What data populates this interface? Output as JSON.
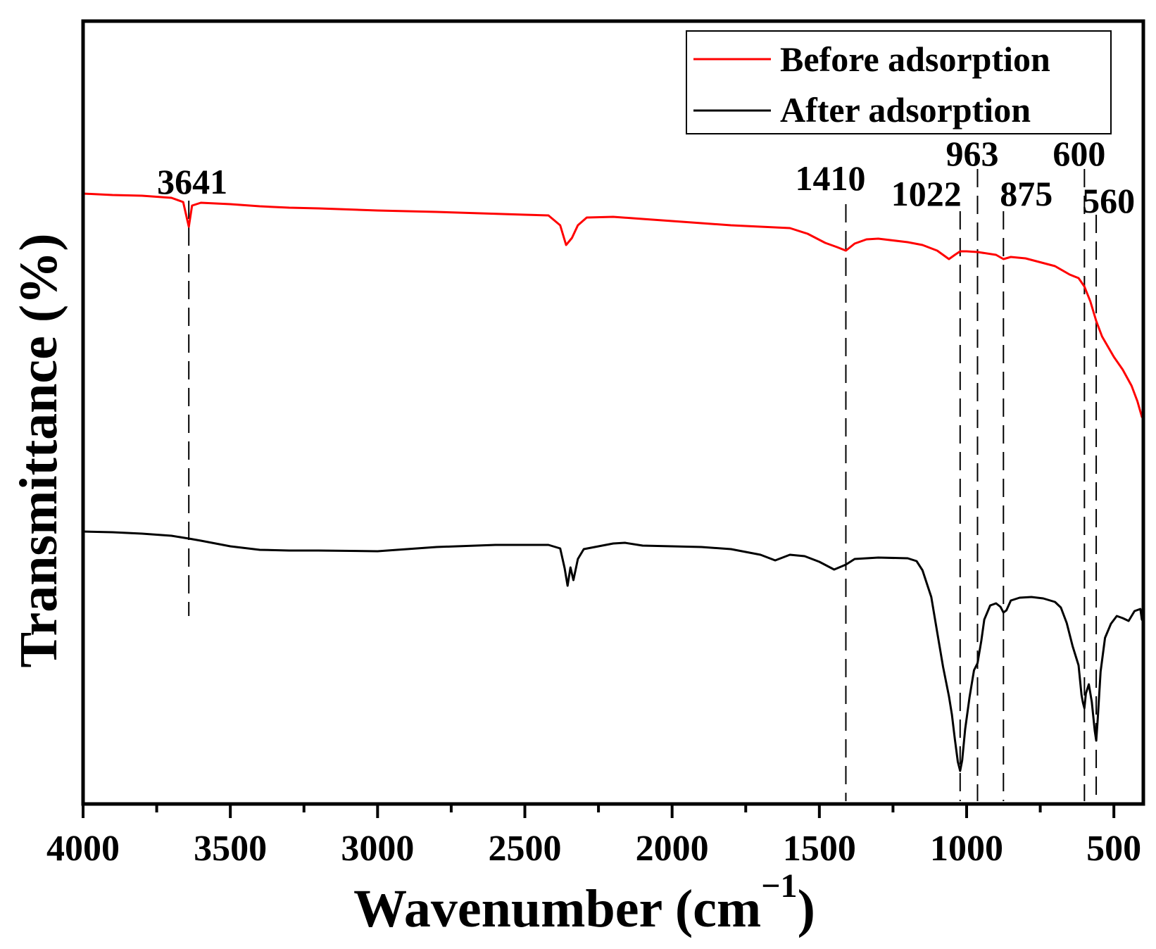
{
  "chart_data": {
    "type": "line",
    "title": "",
    "xlabel": "Wavenumber (cm",
    "xlabel_sup": "−1",
    "xlabel_close": ")",
    "ylabel": "Transmittance (%)",
    "xlim": [
      4000,
      400
    ],
    "ylim": [
      0,
      100
    ],
    "x_ticks": [
      4000,
      3500,
      3000,
      2500,
      2000,
      1500,
      1000,
      500
    ],
    "x_ticks_minor": [
      3750,
      3250,
      2750,
      2250,
      1750,
      1250,
      750
    ],
    "legend_position": "top-right",
    "series": [
      {
        "name": "Before adsorption",
        "color": "#ff0000",
        "points": [
          [
            4000,
            82.5
          ],
          [
            3900,
            82.3
          ],
          [
            3800,
            82.2
          ],
          [
            3700,
            81.9
          ],
          [
            3660,
            81.3
          ],
          [
            3641,
            77.8
          ],
          [
            3630,
            80.8
          ],
          [
            3600,
            81.2
          ],
          [
            3500,
            81.0
          ],
          [
            3400,
            80.7
          ],
          [
            3300,
            80.5
          ],
          [
            3200,
            80.4
          ],
          [
            3000,
            80.1
          ],
          [
            2800,
            79.9
          ],
          [
            2500,
            79.5
          ],
          [
            2420,
            79.4
          ],
          [
            2380,
            78.0
          ],
          [
            2360,
            75.2
          ],
          [
            2340,
            76.2
          ],
          [
            2320,
            78.0
          ],
          [
            2290,
            79.1
          ],
          [
            2200,
            79.2
          ],
          [
            2100,
            78.9
          ],
          [
            2000,
            78.6
          ],
          [
            1900,
            78.3
          ],
          [
            1800,
            78.0
          ],
          [
            1700,
            77.8
          ],
          [
            1600,
            77.6
          ],
          [
            1540,
            76.8
          ],
          [
            1480,
            75.5
          ],
          [
            1440,
            74.9
          ],
          [
            1410,
            74.4
          ],
          [
            1380,
            75.4
          ],
          [
            1340,
            76.0
          ],
          [
            1300,
            76.1
          ],
          [
            1200,
            75.6
          ],
          [
            1150,
            75.2
          ],
          [
            1100,
            74.4
          ],
          [
            1060,
            73.2
          ],
          [
            1040,
            73.8
          ],
          [
            1022,
            74.3
          ],
          [
            1000,
            74.3
          ],
          [
            963,
            74.2
          ],
          [
            900,
            73.8
          ],
          [
            875,
            73.2
          ],
          [
            850,
            73.5
          ],
          [
            800,
            73.3
          ],
          [
            700,
            72.2
          ],
          [
            650,
            71.0
          ],
          [
            620,
            70.5
          ],
          [
            600,
            69.3
          ],
          [
            580,
            67.2
          ],
          [
            560,
            64.4
          ],
          [
            540,
            62.2
          ],
          [
            500,
            59.3
          ],
          [
            470,
            57.5
          ],
          [
            440,
            55.2
          ],
          [
            420,
            53.0
          ],
          [
            405,
            50.8
          ],
          [
            400,
            50.5
          ]
        ]
      },
      {
        "name": "After adsorption",
        "color": "#000000",
        "points": [
          [
            4000,
            34.5
          ],
          [
            3900,
            34.4
          ],
          [
            3800,
            34.2
          ],
          [
            3700,
            33.9
          ],
          [
            3641,
            33.5
          ],
          [
            3600,
            33.2
          ],
          [
            3500,
            32.4
          ],
          [
            3400,
            31.9
          ],
          [
            3300,
            31.8
          ],
          [
            3200,
            31.8
          ],
          [
            3000,
            31.7
          ],
          [
            2800,
            32.3
          ],
          [
            2600,
            32.6
          ],
          [
            2420,
            32.6
          ],
          [
            2380,
            32.1
          ],
          [
            2365,
            29.3
          ],
          [
            2355,
            26.8
          ],
          [
            2345,
            29.4
          ],
          [
            2335,
            27.6
          ],
          [
            2320,
            30.6
          ],
          [
            2300,
            32.0
          ],
          [
            2200,
            32.8
          ],
          [
            2160,
            32.9
          ],
          [
            2100,
            32.5
          ],
          [
            2000,
            32.4
          ],
          [
            1900,
            32.3
          ],
          [
            1800,
            32.0
          ],
          [
            1700,
            31.2
          ],
          [
            1650,
            30.4
          ],
          [
            1600,
            31.2
          ],
          [
            1550,
            31.0
          ],
          [
            1500,
            30.2
          ],
          [
            1450,
            29.1
          ],
          [
            1410,
            29.8
          ],
          [
            1380,
            30.6
          ],
          [
            1300,
            30.8
          ],
          [
            1200,
            30.7
          ],
          [
            1170,
            30.3
          ],
          [
            1150,
            29.0
          ],
          [
            1120,
            25.2
          ],
          [
            1100,
            20.2
          ],
          [
            1080,
            15.3
          ],
          [
            1060,
            11.1
          ],
          [
            1050,
            8.5
          ],
          [
            1040,
            5.0
          ],
          [
            1030,
            1.8
          ],
          [
            1022,
            0.5
          ],
          [
            1015,
            2.0
          ],
          [
            1005,
            6.4
          ],
          [
            990,
            11.0
          ],
          [
            975,
            14.8
          ],
          [
            963,
            15.8
          ],
          [
            950,
            19.0
          ],
          [
            940,
            22.0
          ],
          [
            920,
            24.0
          ],
          [
            900,
            24.3
          ],
          [
            885,
            23.8
          ],
          [
            875,
            23.0
          ],
          [
            865,
            23.3
          ],
          [
            850,
            24.7
          ],
          [
            820,
            25.1
          ],
          [
            780,
            25.2
          ],
          [
            740,
            25.0
          ],
          [
            700,
            24.5
          ],
          [
            680,
            23.7
          ],
          [
            660,
            21.5
          ],
          [
            640,
            18.2
          ],
          [
            620,
            15.5
          ],
          [
            610,
            11.3
          ],
          [
            605,
            10.2
          ],
          [
            600,
            9.4
          ],
          [
            595,
            11.5
          ],
          [
            585,
            12.8
          ],
          [
            575,
            10.3
          ],
          [
            565,
            6.2
          ],
          [
            560,
            4.8
          ],
          [
            555,
            7.8
          ],
          [
            545,
            14.6
          ],
          [
            530,
            19.4
          ],
          [
            510,
            21.4
          ],
          [
            490,
            22.5
          ],
          [
            470,
            22.2
          ],
          [
            450,
            21.8
          ],
          [
            430,
            23.2
          ],
          [
            410,
            23.5
          ],
          [
            405,
            22.0
          ],
          [
            400,
            21.7
          ]
        ]
      }
    ],
    "annotations": [
      {
        "label": "3641",
        "x": 3641
      },
      {
        "label": "1410",
        "x": 1410
      },
      {
        "label": "1022",
        "x": 1022
      },
      {
        "label": "963",
        "x": 963
      },
      {
        "label": "875",
        "x": 875
      },
      {
        "label": "600",
        "x": 600
      },
      {
        "label": "560",
        "x": 560
      }
    ]
  }
}
